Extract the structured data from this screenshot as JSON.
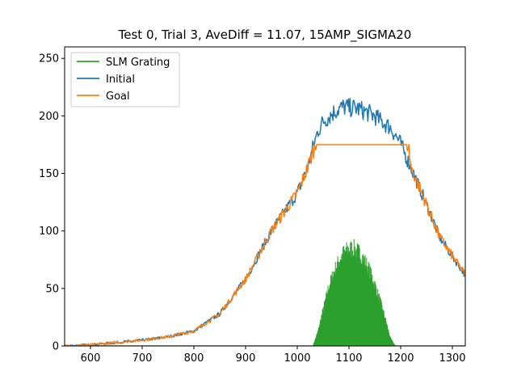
{
  "chart_data": {
    "type": "line",
    "title": "Test 0, Trial 3, AveDiff = 11.07, 15AMP_SIGMA20",
    "xlabel": "",
    "ylabel": "",
    "xlim": [
      550,
      1325
    ],
    "ylim": [
      0,
      260
    ],
    "xticks": [
      600,
      700,
      800,
      900,
      1000,
      1100,
      1200,
      1300
    ],
    "yticks": [
      0,
      50,
      100,
      150,
      200,
      250
    ],
    "grid": false,
    "legend_position": "top-left",
    "series": [
      {
        "name": "SLM Grating",
        "color": "#2ca02c",
        "style": "filled-noisy",
        "x": [
          550,
          1030,
          1040,
          1050,
          1060,
          1070,
          1080,
          1090,
          1100,
          1110,
          1120,
          1130,
          1140,
          1150,
          1160,
          1170,
          1180,
          1190,
          1200,
          1325
        ],
        "y": [
          0,
          0,
          14,
          35,
          55,
          70,
          81,
          89,
          93,
          93,
          89,
          82,
          72,
          59,
          44,
          27,
          8,
          0,
          0,
          0
        ]
      },
      {
        "name": "Initial",
        "color": "#1f77b4",
        "style": "line",
        "x": [
          550,
          600,
          650,
          700,
          750,
          800,
          850,
          900,
          950,
          1000,
          1020,
          1030,
          1040,
          1050,
          1060,
          1070,
          1080,
          1090,
          1100,
          1110,
          1120,
          1130,
          1140,
          1150,
          1160,
          1170,
          1180,
          1190,
          1200,
          1210,
          1220,
          1250,
          1275,
          1300,
          1325
        ],
        "y": [
          0,
          1,
          3,
          5,
          8,
          13,
          28,
          58,
          100,
          133,
          155,
          172,
          187,
          195,
          199,
          203,
          206,
          208,
          207,
          207,
          206,
          204,
          202,
          200,
          196,
          193,
          190,
          183,
          176,
          165,
          155,
          123,
          95,
          78,
          62
        ]
      },
      {
        "name": "Goal",
        "color": "#ff7f0e",
        "style": "line",
        "x": [
          550,
          600,
          650,
          700,
          750,
          800,
          850,
          900,
          950,
          1000,
          1020,
          1030,
          1035,
          1100,
          1150,
          1210,
          1215,
          1220,
          1250,
          1275,
          1300,
          1325
        ],
        "y": [
          0,
          1,
          3,
          5,
          8,
          13,
          28,
          58,
          100,
          133,
          155,
          168,
          175,
          175,
          175,
          175,
          175,
          155,
          123,
          95,
          78,
          62
        ]
      }
    ],
    "legend": [
      "SLM Grating",
      "Initial",
      "Goal"
    ]
  }
}
